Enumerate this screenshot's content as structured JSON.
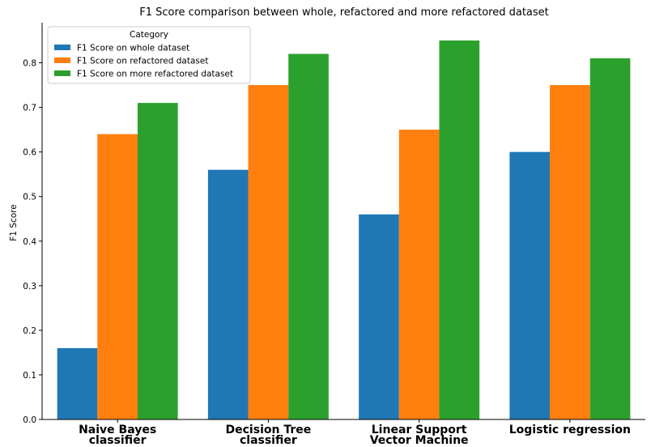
{
  "chart_data": {
    "type": "bar",
    "title": "F1 Score comparison between whole, refactored and more refactored dataset",
    "xlabel": "",
    "ylabel": "F1 Score",
    "ylim": [
      0,
      0.89
    ],
    "yticks": [
      0.0,
      0.1,
      0.2,
      0.3,
      0.4,
      0.5,
      0.6,
      0.7,
      0.8
    ],
    "ytick_labels": [
      "0.0",
      "0.1",
      "0.2",
      "0.3",
      "0.4",
      "0.5",
      "0.6",
      "0.7",
      "0.8"
    ],
    "categories": [
      [
        "Naive Bayes",
        "classifier"
      ],
      [
        "Decision Tree",
        "classifier"
      ],
      [
        "Linear Support",
        "Vector Machine"
      ],
      [
        "Logistic regression"
      ]
    ],
    "legend": {
      "title": "Category",
      "placement": "top-left"
    },
    "grid": false,
    "series": [
      {
        "name": "F1 Score on whole dataset",
        "color": "#1f77b4",
        "values": [
          0.16,
          0.56,
          0.46,
          0.6
        ]
      },
      {
        "name": "F1 Score on refactored dataset",
        "color": "#ff7f0e",
        "values": [
          0.64,
          0.75,
          0.65,
          0.75
        ]
      },
      {
        "name": "F1 Score on more refactored dataset",
        "color": "#2ca02c",
        "values": [
          0.71,
          0.82,
          0.85,
          0.81
        ]
      }
    ]
  }
}
